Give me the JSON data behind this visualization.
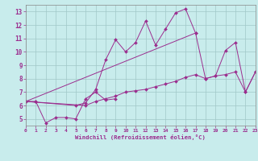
{
  "xlabel": "Windchill (Refroidissement éolien,°C)",
  "xlim": [
    0,
    23
  ],
  "ylim": [
    4.5,
    13.5
  ],
  "xticks": [
    0,
    1,
    2,
    3,
    4,
    5,
    6,
    7,
    8,
    9,
    10,
    11,
    12,
    13,
    14,
    15,
    16,
    17,
    18,
    19,
    20,
    21,
    22,
    23
  ],
  "yticks": [
    5,
    6,
    7,
    8,
    9,
    10,
    11,
    12,
    13
  ],
  "background_color": "#c8ecec",
  "line_color": "#9b2d8e",
  "grid_color": "#a0c8c8",
  "series": [
    {
      "segments": [
        {
          "x": [
            0,
            1
          ],
          "y": [
            6.3,
            6.3
          ]
        }
      ]
    },
    {
      "segments": [
        {
          "x": [
            0,
            1,
            2,
            3,
            4,
            5,
            6,
            7,
            8,
            9
          ],
          "y": [
            6.3,
            6.3,
            4.7,
            5.1,
            5.1,
            5.0,
            6.5,
            7.0,
            6.4,
            6.5
          ]
        }
      ]
    },
    {
      "segments": [
        {
          "x": [
            0,
            5,
            6,
            7,
            8,
            9,
            10,
            11,
            12,
            13,
            14,
            15,
            16,
            17
          ],
          "y": [
            6.3,
            6.0,
            6.2,
            7.2,
            9.4,
            10.9,
            10.0,
            10.7,
            12.3,
            10.5,
            11.7,
            12.9,
            13.2,
            11.4
          ]
        }
      ]
    },
    {
      "segments": [
        {
          "x": [
            0,
            17,
            18,
            19,
            20,
            21,
            22,
            23
          ],
          "y": [
            6.3,
            11.4,
            8.0,
            8.2,
            10.1,
            10.7,
            7.0,
            8.5
          ]
        }
      ]
    },
    {
      "segments": [
        {
          "x": [
            0,
            6,
            7,
            8,
            9,
            10,
            11,
            12,
            13,
            14,
            15,
            16,
            17,
            18,
            19,
            20,
            21,
            22,
            23
          ],
          "y": [
            6.3,
            6.0,
            6.3,
            6.5,
            6.7,
            7.0,
            7.1,
            7.2,
            7.4,
            7.6,
            7.8,
            8.1,
            8.3,
            8.0,
            8.2,
            8.3,
            8.5,
            7.0,
            8.5
          ]
        }
      ]
    }
  ]
}
